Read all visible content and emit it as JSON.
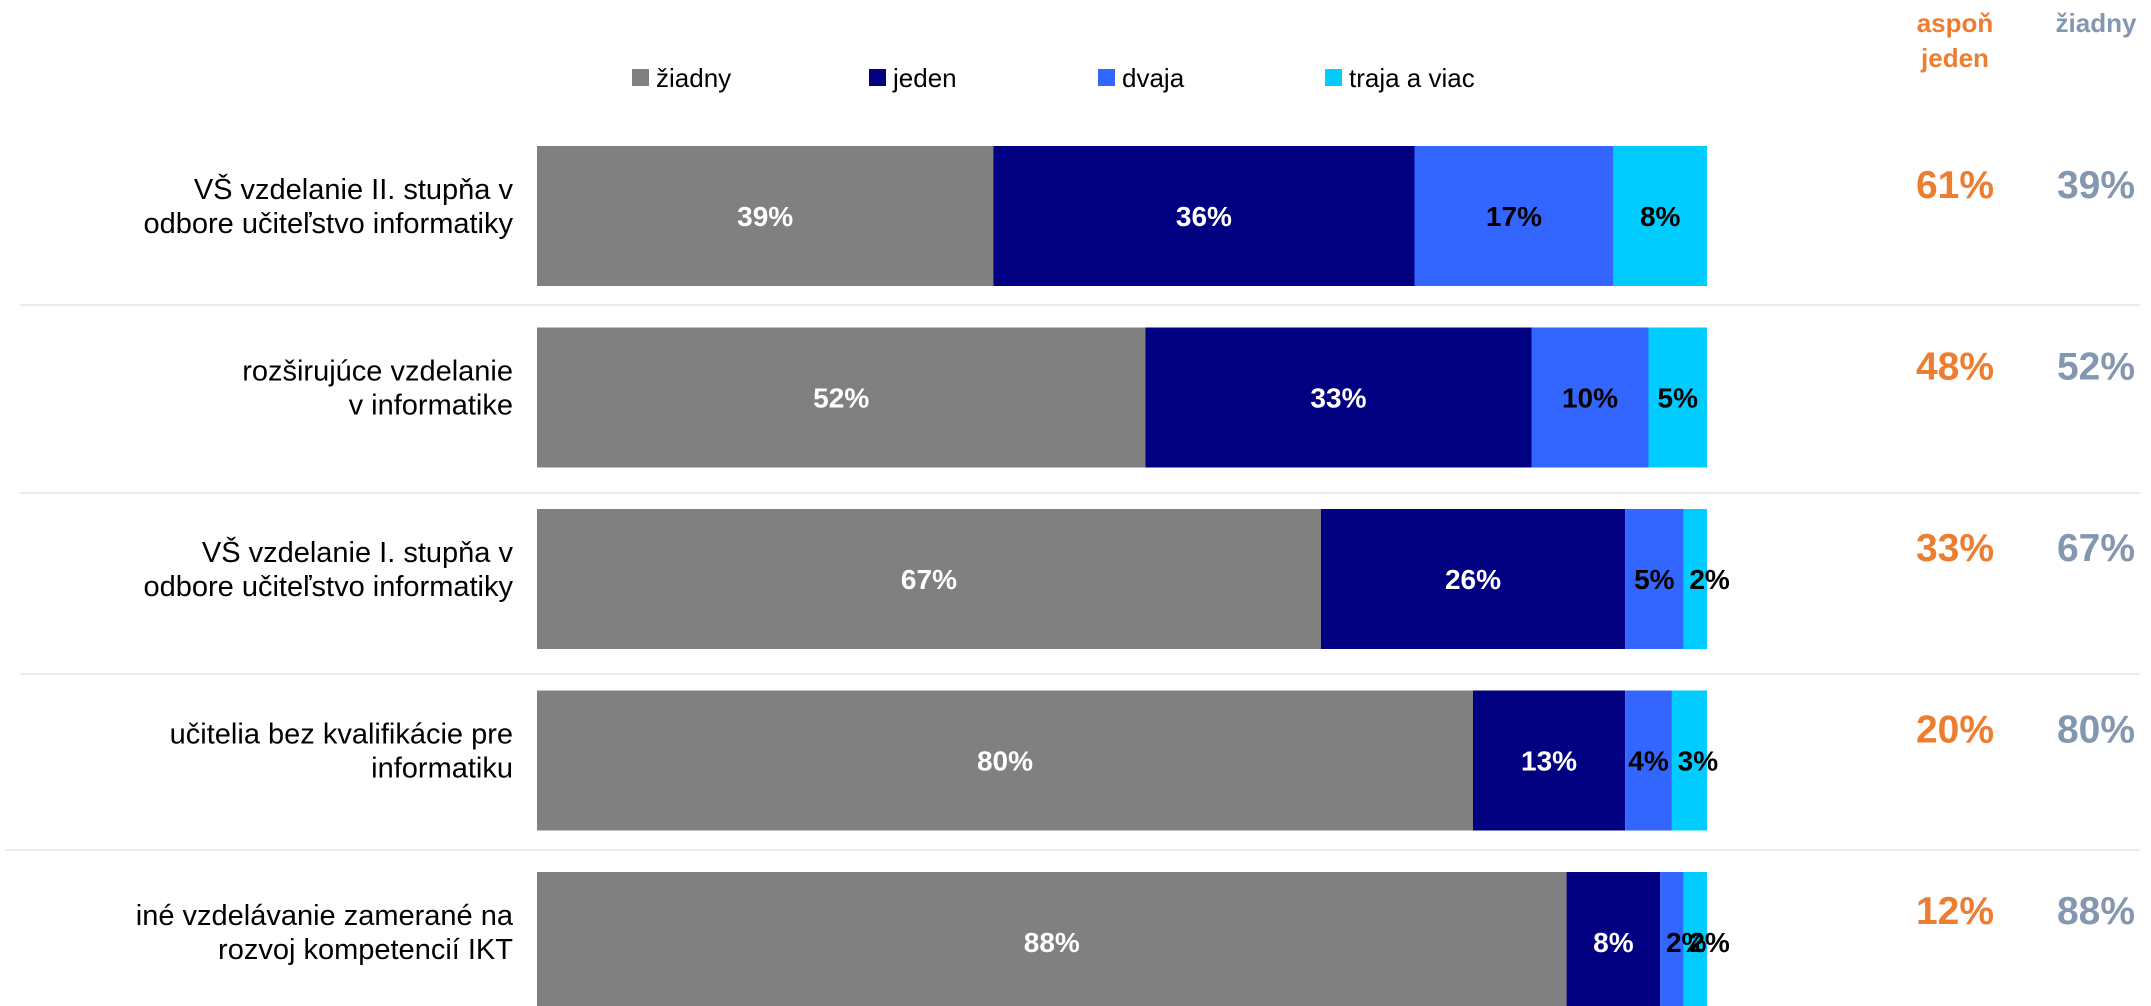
{
  "chart_data": {
    "type": "bar",
    "orientation": "horizontal",
    "stacked": true,
    "title": "",
    "xlabel": "",
    "ylabel": "",
    "xlim": [
      0,
      100
    ],
    "unit": "%",
    "legend_position": "top",
    "grid": false,
    "categories": [
      "VŠ vzdelanie II. stupňa v odbore učiteľstvo informatiky",
      "rozširujúce vzdelanie v informatike",
      "VŠ vzdelanie I. stupňa v odbore učiteľstvo informatiky",
      "učitelia bez kvalifikácie pre informatiku",
      "iné vzdelávanie zamerané na rozvoj kompetencií IKT"
    ],
    "category_lines": [
      [
        "VŠ vzdelanie II. stupňa v",
        "odbore učiteľstvo informatiky"
      ],
      [
        "rozširujúce vzdelanie",
        "v informatike"
      ],
      [
        "VŠ vzdelanie I. stupňa v",
        "odbore učiteľstvo informatiky"
      ],
      [
        "učitelia bez kvalifikácie pre",
        "informatiku"
      ],
      [
        "iné vzdelávanie zamerané na",
        "rozvoj kompetencií IKT"
      ]
    ],
    "series": [
      {
        "name": "žiadny",
        "color": "#808080",
        "label_color": "#ffffff",
        "values": [
          39,
          52,
          67,
          80,
          88
        ]
      },
      {
        "name": "jeden",
        "color": "#000080",
        "label_color": "#ffffff",
        "values": [
          36,
          33,
          26,
          13,
          8
        ]
      },
      {
        "name": "dvaja",
        "color": "#3366ff",
        "label_color": "#000000",
        "values": [
          17,
          10,
          5,
          4,
          2
        ]
      },
      {
        "name": "traja a viac",
        "color": "#00ccff",
        "label_color": "#000000",
        "values": [
          8,
          5,
          2,
          3,
          2
        ]
      }
    ],
    "summary_columns": [
      {
        "header": [
          "aspoň",
          "jeden"
        ],
        "color": "#ed7d31",
        "values": [
          "61%",
          "48%",
          "33%",
          "20%",
          "12%"
        ]
      },
      {
        "header": [
          "žiadny"
        ],
        "color": "#8497b0",
        "values": [
          "39%",
          "52%",
          "67%",
          "80%",
          "88%"
        ]
      }
    ]
  }
}
